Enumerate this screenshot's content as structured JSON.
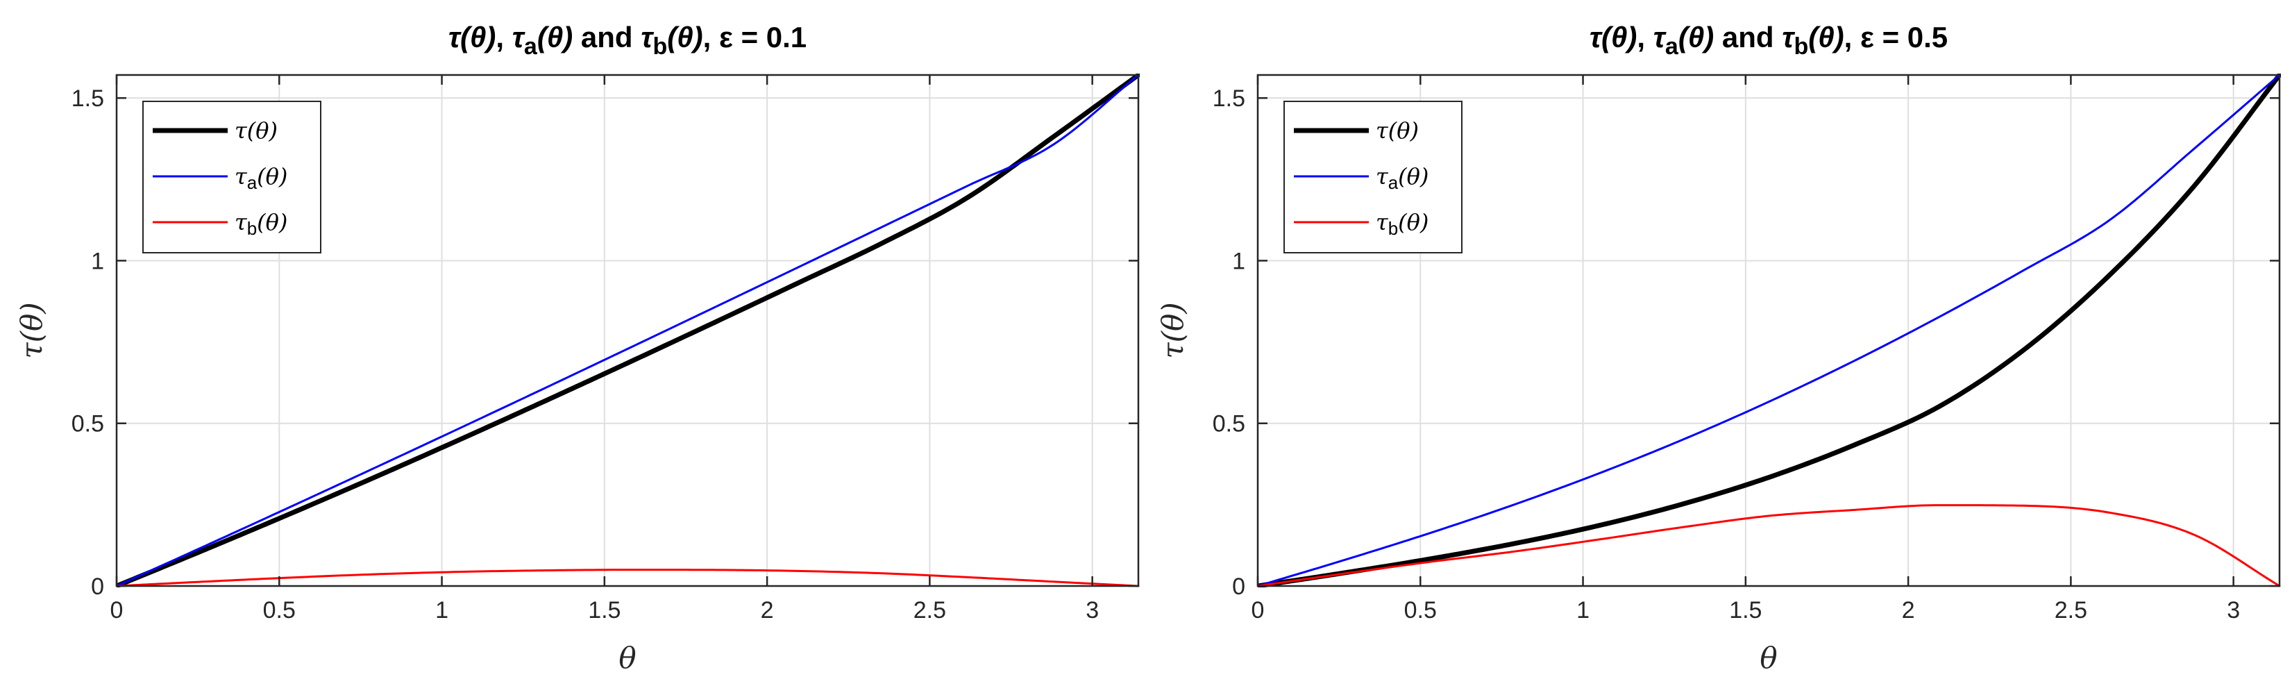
{
  "chart_data": [
    {
      "type": "line",
      "epsilon": 0.1,
      "title": {
        "tau": "τ(θ)",
        "sep1": ", ",
        "tau_a": "τ",
        "tau_a_sub": "a",
        "tau_a_arg": "(θ)",
        "and": " and ",
        "tau_b": "τ",
        "tau_b_sub": "b",
        "tau_b_arg": "(θ)",
        "eps": ", ε = 0.1"
      },
      "xlabel": "θ",
      "ylabel": "τ(θ)",
      "xlim": [
        0,
        3.14159
      ],
      "ylim": [
        0,
        1.5708
      ],
      "xticks": [
        0,
        0.5,
        1,
        1.5,
        2,
        2.5,
        3
      ],
      "xtick_labels": [
        "0",
        "0.5",
        "1",
        "1.5",
        "2",
        "2.5",
        "3"
      ],
      "yticks": [
        0,
        0.5,
        1,
        1.5
      ],
      "ytick_labels": [
        "0",
        "0.5",
        "1",
        "1.5"
      ],
      "grid": true,
      "legend_position": "top-left",
      "series": [
        {
          "name": "tau",
          "label": "τ",
          "label_sub": "",
          "label_arg": "(θ)",
          "color": "#000000",
          "width": "thick",
          "x": [
            0,
            0.2618,
            0.5236,
            0.7854,
            1.0472,
            1.309,
            1.5708,
            1.8326,
            2.0944,
            2.3562,
            2.618,
            2.8798,
            3.1416
          ],
          "y": [
            0,
            0.1077,
            0.2178,
            0.3307,
            0.4465,
            0.5649,
            0.6853,
            0.8075,
            0.931,
            1.0551,
            1.1951,
            1.3804,
            1.5708
          ]
        },
        {
          "name": "tau_a",
          "label": "τ",
          "label_sub": "a",
          "label_arg": "(θ)",
          "color": "#0000ff",
          "width": "thin",
          "x": [
            0,
            0.2618,
            0.5236,
            0.7854,
            1.0472,
            1.309,
            1.5708,
            1.8326,
            2.0944,
            2.3562,
            2.618,
            2.8798,
            3.1416
          ],
          "y": [
            0,
            0.1185,
            0.2383,
            0.3593,
            0.4814,
            0.6046,
            0.7288,
            0.8537,
            0.9791,
            1.1049,
            1.2308,
            1.3567,
            1.5708
          ]
        },
        {
          "name": "tau_b",
          "label": "τ",
          "label_sub": "b",
          "label_arg": "(θ)",
          "color": "#ff0000",
          "width": "thin",
          "x": [
            0,
            0.2618,
            0.5236,
            0.7854,
            1.0472,
            1.309,
            1.5708,
            1.8326,
            2.0944,
            2.3562,
            2.618,
            2.8798,
            3.1416
          ],
          "y": [
            0,
            0.013,
            0.0253,
            0.0358,
            0.0434,
            0.0478,
            0.0499,
            0.0495,
            0.0462,
            0.0389,
            0.0269,
            0.0133,
            0
          ]
        }
      ]
    },
    {
      "type": "line",
      "epsilon": 0.5,
      "title": {
        "tau": "τ(θ)",
        "sep1": ", ",
        "tau_a": "τ",
        "tau_a_sub": "a",
        "tau_a_arg": "(θ)",
        "and": " and ",
        "tau_b": "τ",
        "tau_b_sub": "b",
        "tau_b_arg": "(θ)",
        "eps": ", ε = 0.5"
      },
      "xlabel": "θ",
      "ylabel": "τ(θ)",
      "xlim": [
        0,
        3.14159
      ],
      "ylim": [
        0,
        1.5708
      ],
      "xticks": [
        0,
        0.5,
        1,
        1.5,
        2,
        2.5,
        3
      ],
      "xtick_labels": [
        "0",
        "0.5",
        "1",
        "1.5",
        "2",
        "2.5",
        "3"
      ],
      "yticks": [
        0,
        0.5,
        1,
        1.5
      ],
      "ytick_labels": [
        "0",
        "0.5",
        "1",
        "1.5"
      ],
      "grid": true,
      "legend_position": "top-left",
      "series": [
        {
          "name": "tau",
          "label": "τ",
          "label_sub": "",
          "label_arg": "(θ)",
          "color": "#000000",
          "width": "thick",
          "x": [
            0,
            0.2618,
            0.5236,
            0.7854,
            1.0472,
            1.309,
            1.5708,
            1.8326,
            2.0944,
            2.3562,
            2.618,
            2.8798,
            3.1416
          ],
          "y": [
            0,
            0.0398,
            0.0822,
            0.1298,
            0.1855,
            0.2526,
            0.3337,
            0.4328,
            0.5514,
            0.7264,
            0.9547,
            1.2302,
            1.5708
          ]
        },
        {
          "name": "tau_a",
          "label": "τ",
          "label_sub": "a",
          "label_arg": "(θ)",
          "color": "#0000ff",
          "width": "thin",
          "x": [
            0,
            0.2618,
            0.5236,
            0.7854,
            1.0472,
            1.309,
            1.5708,
            1.8326,
            2.0944,
            2.3562,
            2.618,
            2.8798,
            3.1416
          ],
          "y": [
            0,
            0.0785,
            0.1608,
            0.2491,
            0.3454,
            0.4508,
            0.5661,
            0.6914,
            0.8266,
            0.9711,
            1.1239,
            1.3447,
            1.5708
          ]
        },
        {
          "name": "tau_b",
          "label": "τ",
          "label_sub": "b",
          "label_arg": "(θ)",
          "color": "#ff0000",
          "width": "thin",
          "x": [
            0,
            0.2618,
            0.5236,
            0.7854,
            1.0472,
            1.309,
            1.5708,
            1.8326,
            2.0944,
            2.3562,
            2.618,
            2.8798,
            3.1416
          ],
          "y": [
            0,
            0.0376,
            0.0734,
            0.1056,
            0.1427,
            0.1811,
            0.2155,
            0.2338,
            0.2485,
            0.2469,
            0.2257,
            0.1571,
            0
          ]
        }
      ]
    }
  ]
}
